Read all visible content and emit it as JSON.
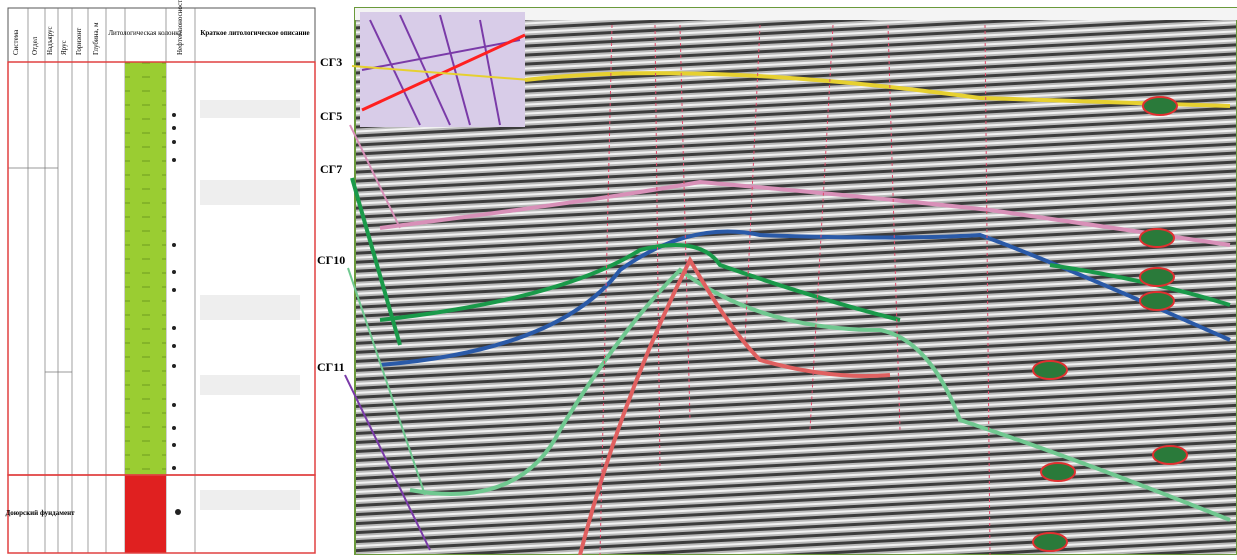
{
  "column": {
    "headers": [
      "Система",
      "Отдел",
      "Надъярус",
      "Ярус",
      "Горизонт",
      "Глубина, м",
      "Литологическая колонка",
      "Нефтегазоносность",
      "Краткое литологическое описание"
    ],
    "basement": "Доюрский фундамент"
  },
  "section": {
    "horizons": [
      "СГ3",
      "СГ5",
      "СГ7",
      "СГ10",
      "СГ11"
    ]
  }
}
